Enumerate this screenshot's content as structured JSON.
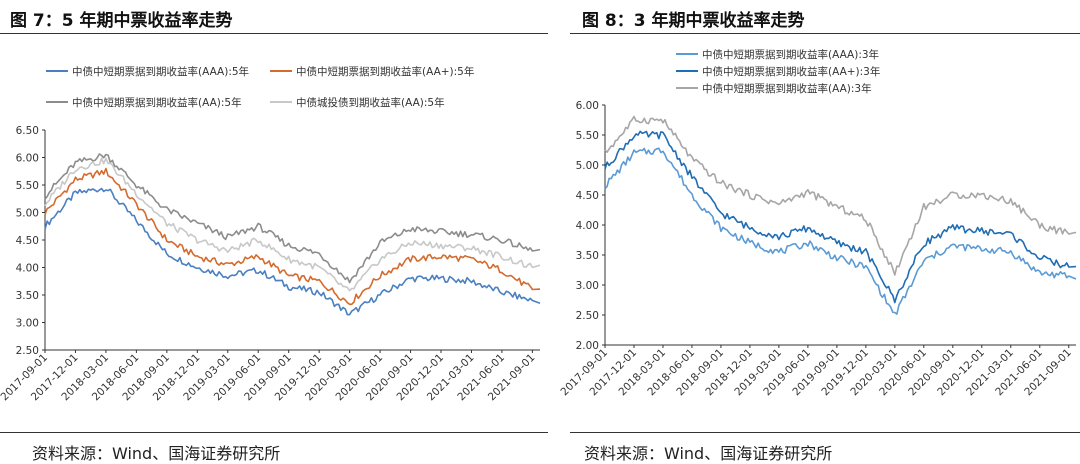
{
  "figures": [
    {
      "title": "图 7：5 年期中票收益率走势",
      "source": "资料来源：Wind、国海证券研究所"
    },
    {
      "title": "图 8：3 年期中票收益率走势",
      "source": "资料来源：Wind、国海证券研究所"
    }
  ],
  "chart_data": [
    {
      "type": "line",
      "title": "",
      "xlabel": "",
      "ylabel": "",
      "ylim": [
        2.5,
        6.5
      ],
      "yticks": [
        "2.50",
        "3.00",
        "3.50",
        "4.00",
        "4.50",
        "5.00",
        "5.50",
        "6.00",
        "6.50"
      ],
      "x": [
        "2017-09-01",
        "2017-12-01",
        "2018-03-01",
        "2018-06-01",
        "2018-09-01",
        "2018-12-01",
        "2019-03-01",
        "2019-06-01",
        "2019-09-01",
        "2019-12-01",
        "2020-03-01",
        "2020-06-01",
        "2020-09-01",
        "2020-12-01",
        "2021-03-01",
        "2021-06-01",
        "2021-09-01"
      ],
      "grid": false,
      "legend_position": "top",
      "series": [
        {
          "name": "中债中短期票据到期收益率(AAA):5年",
          "color": "#4a7fc1",
          "values": [
            4.75,
            5.35,
            5.45,
            4.85,
            4.25,
            4.0,
            3.85,
            3.95,
            3.65,
            3.55,
            3.15,
            3.5,
            3.8,
            3.8,
            3.75,
            3.55,
            3.4
          ]
        },
        {
          "name": "中债中短期票据到期收益率(AA+):5年",
          "color": "#d46a2e",
          "values": [
            5.0,
            5.6,
            5.75,
            5.15,
            4.5,
            4.2,
            4.05,
            4.2,
            3.85,
            3.75,
            3.35,
            3.85,
            4.15,
            4.2,
            4.15,
            3.95,
            3.6
          ]
        },
        {
          "name": "中债中短期票据到期收益率(AA):5年",
          "color": "#8c8c8c",
          "values": [
            5.3,
            5.9,
            6.05,
            5.5,
            5.05,
            4.8,
            4.55,
            4.75,
            4.4,
            4.25,
            3.75,
            4.45,
            4.7,
            4.65,
            4.6,
            4.5,
            4.3
          ]
        },
        {
          "name": "中债城投债到期收益率(AA):5年",
          "color": "#c8c8c8",
          "values": [
            5.15,
            5.8,
            5.95,
            5.35,
            4.8,
            4.5,
            4.3,
            4.5,
            4.15,
            4.0,
            3.55,
            4.15,
            4.45,
            4.4,
            4.35,
            4.2,
            4.0
          ]
        }
      ]
    },
    {
      "type": "line",
      "title": "",
      "xlabel": "",
      "ylabel": "",
      "ylim": [
        2.0,
        6.0
      ],
      "yticks": [
        "2.00",
        "2.50",
        "3.00",
        "3.50",
        "4.00",
        "4.50",
        "5.00",
        "5.50",
        "6.00"
      ],
      "x": [
        "2017-09-01",
        "2017-12-01",
        "2018-03-01",
        "2018-06-01",
        "2018-09-01",
        "2018-12-01",
        "2019-03-01",
        "2019-06-01",
        "2019-09-01",
        "2019-12-01",
        "2020-03-01",
        "2020-06-01",
        "2020-09-01",
        "2020-12-01",
        "2021-03-01",
        "2021-06-01",
        "2021-09-01"
      ],
      "grid": false,
      "legend_position": "top",
      "series": [
        {
          "name": "中债中短期票据到期收益率(AAA):3年",
          "color": "#5b9bd5",
          "values": [
            4.65,
            5.2,
            5.25,
            4.5,
            3.95,
            3.7,
            3.55,
            3.7,
            3.45,
            3.3,
            2.5,
            3.4,
            3.65,
            3.6,
            3.55,
            3.2,
            3.15
          ]
        },
        {
          "name": "中债中短期票据到期收益率(AA+):3年",
          "color": "#1f6db3",
          "values": [
            4.95,
            5.5,
            5.5,
            4.8,
            4.2,
            3.95,
            3.8,
            3.95,
            3.7,
            3.55,
            2.75,
            3.7,
            3.95,
            3.9,
            3.85,
            3.45,
            3.3
          ]
        },
        {
          "name": "中债中短期票据到期收益率(AA):3年",
          "color": "#a6a6a6",
          "values": [
            5.2,
            5.75,
            5.75,
            5.1,
            4.7,
            4.5,
            4.35,
            4.55,
            4.3,
            4.1,
            3.2,
            4.3,
            4.5,
            4.5,
            4.4,
            4.0,
            3.85
          ]
        }
      ]
    }
  ]
}
